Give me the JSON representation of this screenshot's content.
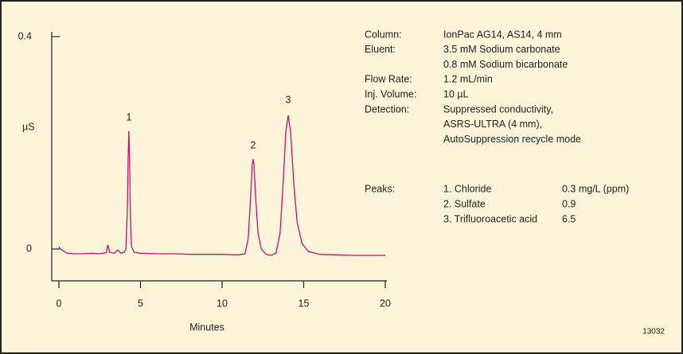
{
  "chart_data": {
    "type": "line",
    "y_label": "µS",
    "x_label": "Minutes",
    "figure_number": "13032",
    "x": [
      0,
      0.1,
      0.5,
      1,
      1.5,
      2,
      2.5,
      2.9,
      3.0,
      3.1,
      3.4,
      3.6,
      3.8,
      4.0,
      4.1,
      4.2,
      4.25,
      4.29,
      4.33,
      4.38,
      4.45,
      4.6,
      5,
      6,
      7,
      8,
      9,
      10,
      11,
      11.4,
      11.6,
      11.75,
      11.85,
      11.9,
      11.95,
      12.05,
      12.2,
      12.4,
      12.7,
      13.0,
      13.3,
      13.55,
      13.75,
      13.9,
      14.05,
      14.2,
      14.4,
      14.6,
      14.9,
      15.3,
      16,
      17,
      18,
      19,
      20
    ],
    "series": [
      {
        "color": "#c8106e",
        "values": [
          0.004,
          0.0,
          -0.008,
          -0.009,
          -0.009,
          -0.008,
          -0.009,
          -0.007,
          0.008,
          -0.006,
          -0.008,
          -0.002,
          -0.008,
          -0.006,
          0.0,
          0.08,
          0.18,
          0.222,
          0.17,
          0.06,
          0.005,
          -0.006,
          -0.008,
          -0.009,
          -0.009,
          -0.01,
          -0.01,
          -0.01,
          -0.011,
          -0.009,
          0.02,
          0.1,
          0.16,
          0.169,
          0.16,
          0.1,
          0.03,
          0.0,
          -0.01,
          -0.012,
          -0.008,
          0.03,
          0.13,
          0.22,
          0.252,
          0.22,
          0.12,
          0.05,
          0.01,
          -0.005,
          -0.01,
          -0.011,
          -0.012,
          -0.012,
          -0.012
        ]
      }
    ],
    "annotations": [
      "1",
      "2",
      "3"
    ],
    "xlim": [
      0,
      20
    ],
    "xticks": [
      0,
      5,
      10,
      15,
      20
    ],
    "ylim": [
      -0.06,
      0.4
    ],
    "yticks": [
      0,
      0.4
    ],
    "conditions": [
      {
        "label": "Column:",
        "lines": [
          "IonPac AG14, AS14, 4 mm"
        ]
      },
      {
        "label": "Eluent:",
        "lines": [
          "3.5 mM Sodium carbonate",
          "0.8 mM Sodium bicarbonate"
        ]
      },
      {
        "label": "Flow Rate:",
        "lines": [
          "1.2 mL/min"
        ]
      },
      {
        "label": "Inj. Volume:",
        "lines": [
          "10 µL"
        ]
      },
      {
        "label": "Detection:",
        "lines": [
          "Suppressed conductivity,",
          "ASRS-ULTRA (4 mm),",
          "AutoSuppression recycle mode"
        ]
      }
    ],
    "peaks_label": "Peaks:",
    "peaks": [
      {
        "name": "1.  Chloride",
        "value": "0.3 mg/L (ppm)"
      },
      {
        "name": "2.  Sulfate",
        "value": "0.9"
      },
      {
        "name": "3.  Trifluoroacetic acid",
        "value": "6.5"
      }
    ]
  }
}
